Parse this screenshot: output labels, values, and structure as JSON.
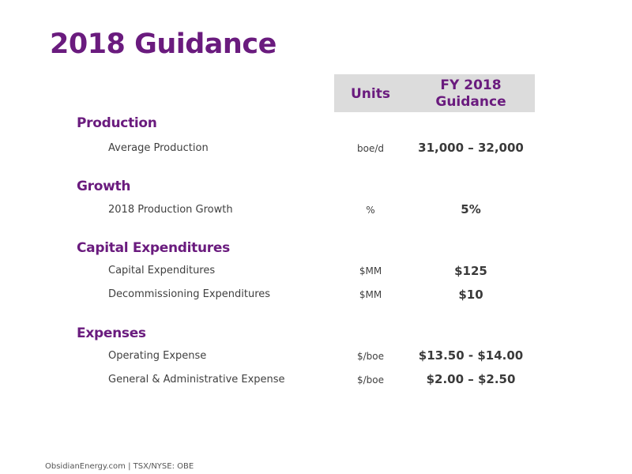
{
  "title": "2018 Guidance",
  "header": {
    "units": "Units",
    "fy_line1": "FY 2018",
    "fy_line2": "Guidance"
  },
  "sections": [
    {
      "name": "Production",
      "rows": [
        {
          "label": "Average Production",
          "unit": "boe/d",
          "value": "31,000 – 32,000"
        }
      ]
    },
    {
      "name": "Growth",
      "rows": [
        {
          "label": "2018 Production Growth",
          "unit": "%",
          "value": "5%"
        }
      ]
    },
    {
      "name": "Capital Expenditures",
      "rows": [
        {
          "label": "Capital Expenditures",
          "unit": "$MM",
          "value": "$125"
        },
        {
          "label": "Decommissioning Expenditures",
          "unit": "$MM",
          "value": "$10"
        }
      ]
    },
    {
      "name": "Expenses",
      "rows": [
        {
          "label": "Operating Expense",
          "unit": "$/boe",
          "value": "$13.50 - $14.00"
        },
        {
          "label": "General & Administrative Expense",
          "unit": "$/boe",
          "value": "$2.00 – $2.50"
        }
      ]
    }
  ],
  "footer": "ObsidianEnergy.com | TSX/NYSE: OBE",
  "colors": {
    "accent": "#6a1b7e",
    "header_bg": "#dcdcdc",
    "text": "#3a3a3a"
  }
}
